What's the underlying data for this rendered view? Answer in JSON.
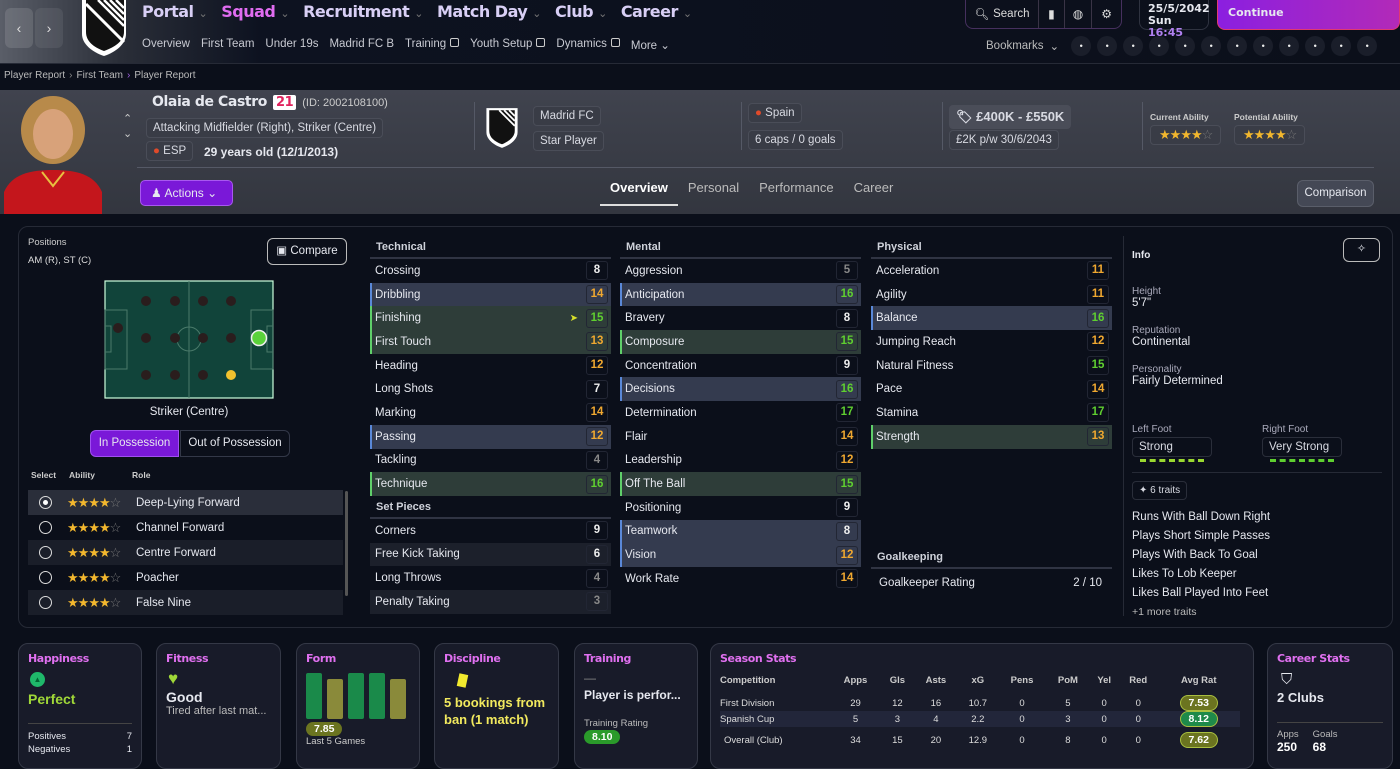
{
  "nav": {
    "main": [
      {
        "label": "Portal",
        "active": false
      },
      {
        "label": "Squad",
        "active": true
      },
      {
        "label": "Recruitment",
        "active": false
      },
      {
        "label": "Match Day",
        "active": false
      },
      {
        "label": "Club",
        "active": false
      },
      {
        "label": "Career",
        "active": false
      }
    ],
    "sub": [
      {
        "label": "Overview"
      },
      {
        "label": "First Team"
      },
      {
        "label": "Under 19s"
      },
      {
        "label": "Madrid FC B"
      },
      {
        "label": "Training",
        "external": true
      },
      {
        "label": "Youth Setup",
        "external": true
      },
      {
        "label": "Dynamics",
        "external": true
      },
      {
        "label": "More ⌄"
      }
    ],
    "search": "Search",
    "date": "25/5/2042",
    "day": "Sun",
    "time": "16:45",
    "continue": "Continue",
    "bookmarks": "Bookmarks",
    "bookmark_icons": [
      "chat-icon",
      "shirt-icon",
      "alert-board-icon",
      "scout-icon",
      "trophy-icon",
      "badge-icon",
      "staff-icon",
      "calendar-icon",
      "clipboard-icon",
      "report-icon",
      "cone-icon",
      "refresh-icon"
    ]
  },
  "breadcrumb": [
    "Player Report",
    "First Team",
    "Player Report"
  ],
  "player": {
    "name": "Olaia de Castro",
    "number": "21",
    "id": "(ID: 2002108100)",
    "positions": "Attacking Midfielder (Right), Striker (Centre)",
    "nation_code": "ESP",
    "age": "29 years old (12/1/2013)",
    "club": "Madrid FC",
    "status": "Star Player",
    "nation": "Spain",
    "caps": "6 caps / 0 goals",
    "value": "£400K - £550K",
    "contract": "£2K p/w 30/6/2043",
    "current_ability_label": "Current Ability",
    "potential_ability_label": "Potential Ability",
    "current_ability_stars": 4,
    "potential_ability_stars": 4
  },
  "actions": "Actions",
  "comparison": "Comparison",
  "tabs": [
    {
      "label": "Overview",
      "active": true
    },
    {
      "label": "Personal"
    },
    {
      "label": "Performance"
    },
    {
      "label": "Career"
    }
  ],
  "positions": {
    "label": "Positions",
    "value": "AM (R), ST (C)",
    "compare": "Compare",
    "selected": "Striker (Centre)",
    "in_possession": "In Possession",
    "out_possession": "Out of Possession",
    "cols": [
      "Select",
      "Ability",
      "Role"
    ],
    "roles": [
      {
        "name": "Deep-Lying Forward",
        "stars": 4,
        "selected": true
      },
      {
        "name": "Channel Forward",
        "stars": 4
      },
      {
        "name": "Centre Forward",
        "stars": 4
      },
      {
        "name": "Poacher",
        "stars": 4
      },
      {
        "name": "False Nine",
        "stars": 4
      }
    ]
  },
  "attributes": {
    "technical": {
      "title": "Technical",
      "items": [
        [
          "Crossing",
          8,
          ""
        ],
        [
          "Dribbling",
          14,
          "blue"
        ],
        [
          "Finishing",
          15,
          "green"
        ],
        [
          "First Touch",
          13,
          "green"
        ],
        [
          "Heading",
          12,
          ""
        ],
        [
          "Long Shots",
          7,
          ""
        ],
        [
          "Marking",
          14,
          ""
        ],
        [
          "Passing",
          12,
          "blue"
        ],
        [
          "Tackling",
          4,
          ""
        ],
        [
          "Technique",
          16,
          "green"
        ]
      ]
    },
    "set_pieces": {
      "title": "Set Pieces",
      "items": [
        [
          "Corners",
          9,
          ""
        ],
        [
          "Free Kick Taking",
          6,
          "alt"
        ],
        [
          "Long Throws",
          4,
          ""
        ],
        [
          "Penalty Taking",
          3,
          "alt"
        ]
      ]
    },
    "mental": {
      "title": "Mental",
      "items": [
        [
          "Aggression",
          5,
          ""
        ],
        [
          "Anticipation",
          16,
          "blue"
        ],
        [
          "Bravery",
          8,
          ""
        ],
        [
          "Composure",
          15,
          "green"
        ],
        [
          "Concentration",
          9,
          ""
        ],
        [
          "Decisions",
          16,
          "blue"
        ],
        [
          "Determination",
          17,
          ""
        ],
        [
          "Flair",
          14,
          ""
        ],
        [
          "Leadership",
          12,
          ""
        ],
        [
          "Off The Ball",
          15,
          "green"
        ],
        [
          "Positioning",
          9,
          ""
        ],
        [
          "Teamwork",
          8,
          "blue"
        ],
        [
          "Vision",
          12,
          "blue"
        ],
        [
          "Work Rate",
          14,
          ""
        ]
      ]
    },
    "physical": {
      "title": "Physical",
      "items": [
        [
          "Acceleration",
          11,
          ""
        ],
        [
          "Agility",
          11,
          ""
        ],
        [
          "Balance",
          16,
          "blue"
        ],
        [
          "Jumping Reach",
          12,
          ""
        ],
        [
          "Natural Fitness",
          15,
          ""
        ],
        [
          "Pace",
          14,
          ""
        ],
        [
          "Stamina",
          17,
          ""
        ],
        [
          "Strength",
          13,
          "green"
        ]
      ]
    },
    "goalkeeping": {
      "title": "Goalkeeping",
      "label": "Goalkeeper Rating",
      "value": "2 / 10"
    }
  },
  "info": {
    "title": "Info",
    "height_label": "Height",
    "height": "5'7\"",
    "reputation_label": "Reputation",
    "reputation": "Continental",
    "personality_label": "Personality",
    "personality": "Fairly Determined",
    "left_foot_label": "Left Foot",
    "left_foot": "Strong",
    "right_foot_label": "Right Foot",
    "right_foot": "Very Strong",
    "traits_count": "6 traits",
    "traits": [
      "Runs With Ball Down Right",
      "Plays Short Simple Passes",
      "Plays With Back To Goal",
      "Likes To Lob Keeper",
      "Likes Ball Played Into Feet"
    ],
    "more_traits": "+1 more traits"
  },
  "cards": {
    "happiness": {
      "title": "Happiness",
      "value": "Perfect",
      "positives_label": "Positives",
      "positives": "7",
      "negatives_label": "Negatives",
      "negatives": "1"
    },
    "fitness": {
      "title": "Fitness",
      "value": "Good",
      "note": "Tired after last mat..."
    },
    "form": {
      "title": "Form",
      "games": [
        "good",
        "avg",
        "good",
        "good",
        "avg"
      ],
      "rating": "7.85",
      "label": "Last 5 Games"
    },
    "discipline": {
      "title": "Discipline",
      "value": "5 bookings from ban (1 match)"
    },
    "training": {
      "title": "Training",
      "dash": "—",
      "value": "Player is perfor...",
      "rating_label": "Training Rating",
      "rating": "8.10"
    },
    "season": {
      "title": "Season Stats",
      "headers": [
        "Competition",
        "Apps",
        "Gls",
        "Asts",
        "xG",
        "Pens",
        "PoM",
        "Yel",
        "Red",
        "Avg Rat"
      ],
      "rows": [
        [
          "First Division",
          "29",
          "12",
          "16",
          "10.7",
          "0",
          "5",
          "0",
          "0",
          "7.53"
        ],
        [
          "Spanish Cup",
          "5",
          "3",
          "4",
          "2.2",
          "0",
          "3",
          "0",
          "0",
          "8.12"
        ],
        [
          "Overall (Club)",
          "34",
          "15",
          "20",
          "12.9",
          "0",
          "8",
          "0",
          "0",
          "7.62"
        ]
      ]
    },
    "career": {
      "title": "Career Stats",
      "clubs": "2 Clubs",
      "apps_label": "Apps",
      "apps": "250",
      "goals_label": "Goals",
      "goals": "68"
    }
  },
  "colors": {
    "accent": "#8b1fe0",
    "title_pink": "#e070f0",
    "good": "#5fcf6a",
    "mid": "#f0a830",
    "rating_green": "#1f8a4a",
    "rating_olive": "#6b7420"
  }
}
